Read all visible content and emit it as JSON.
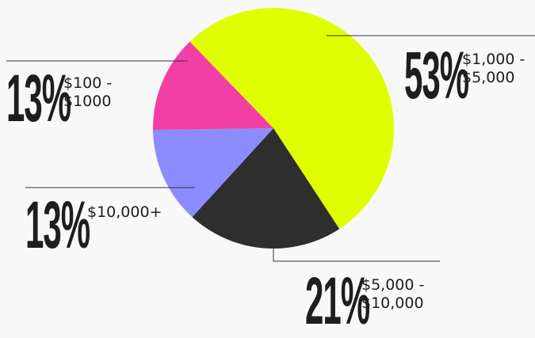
{
  "chart_data": {
    "type": "pie",
    "categories": [
      "$1,000 - $5,000",
      "$5,000 - $10,000",
      "$10,000+",
      "$100 - $1000"
    ],
    "values": [
      53,
      21,
      13,
      13
    ],
    "value_labels": [
      "53%",
      "21%",
      "13%",
      "13%"
    ],
    "colors": [
      "#dfff00",
      "#2e2e2e",
      "#8c8cff",
      "#f23fa6"
    ]
  }
}
